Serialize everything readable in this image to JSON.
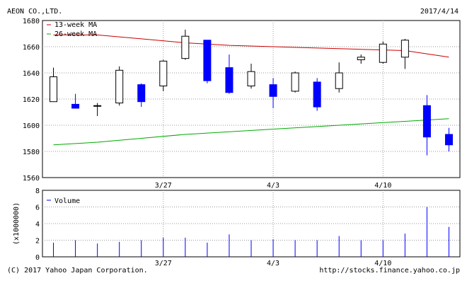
{
  "header": {
    "company": "AEON CO.,LTD.",
    "date": "2017/4/14"
  },
  "footer": {
    "copyright": "(C) 2017 Yahoo Japan Corporation.",
    "url": "http://stocks.finance.yahoo.co.jp"
  },
  "colors": {
    "up": "#ffffff",
    "down": "#0000ff",
    "ma13": "#cc0000",
    "ma26": "#00aa00",
    "volume": "#0000ff",
    "grid": "#999999"
  },
  "chart_data": [
    {
      "type": "candlestick",
      "title": "",
      "ylim": [
        1560,
        1680
      ],
      "yticks": [
        1560,
        1580,
        1600,
        1620,
        1640,
        1660,
        1680
      ],
      "xticks": [
        {
          "index": 5,
          "label": "3/27"
        },
        {
          "index": 10,
          "label": "4/3"
        },
        {
          "index": 15,
          "label": "4/10"
        }
      ],
      "grid": true,
      "legend": [
        "13-week MA",
        "26-week MA"
      ],
      "candles": [
        {
          "open": 1618,
          "high": 1644,
          "low": 1618,
          "close": 1637
        },
        {
          "open": 1616,
          "high": 1624,
          "low": 1613,
          "close": 1613
        },
        {
          "open": 1615,
          "high": 1617,
          "low": 1607,
          "close": 1615
        },
        {
          "open": 1617,
          "high": 1645,
          "low": 1615,
          "close": 1642
        },
        {
          "open": 1631,
          "high": 1632,
          "low": 1614,
          "close": 1618
        },
        {
          "open": 1630,
          "high": 1650,
          "low": 1626,
          "close": 1649
        },
        {
          "open": 1651,
          "high": 1673,
          "low": 1650,
          "close": 1668
        },
        {
          "open": 1665,
          "high": 1665,
          "low": 1632,
          "close": 1634
        },
        {
          "open": 1644,
          "high": 1654,
          "low": 1624,
          "close": 1625
        },
        {
          "open": 1630,
          "high": 1647,
          "low": 1628,
          "close": 1641
        },
        {
          "open": 1631,
          "high": 1636,
          "low": 1613,
          "close": 1622
        },
        {
          "open": 1626,
          "high": 1641,
          "low": 1625,
          "close": 1640
        },
        {
          "open": 1633,
          "high": 1636,
          "low": 1611,
          "close": 1614
        },
        {
          "open": 1628,
          "high": 1648,
          "low": 1625,
          "close": 1640
        },
        {
          "open": 1650,
          "high": 1654,
          "low": 1647,
          "close": 1652
        },
        {
          "open": 1648,
          "high": 1664,
          "low": 1647,
          "close": 1662
        },
        {
          "open": 1652,
          "high": 1666,
          "low": 1643,
          "close": 1665
        },
        {
          "open": 1615,
          "high": 1623,
          "low": 1577,
          "close": 1591
        },
        {
          "open": 1593,
          "high": 1598,
          "low": 1580,
          "close": 1585
        }
      ],
      "series": [
        {
          "name": "13-week MA",
          "points": [
            [
              0,
              1669
            ],
            [
              2,
              1669
            ],
            [
              4,
              1666
            ],
            [
              6,
              1663
            ],
            [
              8,
              1661
            ],
            [
              10,
              1660
            ],
            [
              12,
              1659
            ],
            [
              14,
              1658
            ],
            [
              16,
              1657
            ],
            [
              18,
              1652
            ]
          ]
        },
        {
          "name": "26-week MA",
          "points": [
            [
              0,
              1585
            ],
            [
              2,
              1587
            ],
            [
              4,
              1590
            ],
            [
              6,
              1593
            ],
            [
              8,
              1595
            ],
            [
              10,
              1597
            ],
            [
              12,
              1599
            ],
            [
              14,
              1601
            ],
            [
              16,
              1603
            ],
            [
              18,
              1605
            ]
          ]
        }
      ]
    },
    {
      "type": "bar",
      "title": "",
      "ylabel": "(x1000000)",
      "ylim": [
        0,
        8
      ],
      "yticks": [
        0,
        2,
        4,
        6,
        8
      ],
      "xticks": [
        {
          "index": 5,
          "label": "3/27"
        },
        {
          "index": 10,
          "label": "4/3"
        },
        {
          "index": 15,
          "label": "4/10"
        }
      ],
      "legend": [
        "Volume"
      ],
      "values": [
        1.7,
        2.0,
        1.6,
        1.8,
        2.0,
        2.3,
        2.3,
        1.7,
        2.7,
        2.0,
        2.1,
        2.0,
        2.0,
        2.5,
        2.0,
        2.0,
        2.8,
        6.0,
        3.6
      ]
    }
  ]
}
